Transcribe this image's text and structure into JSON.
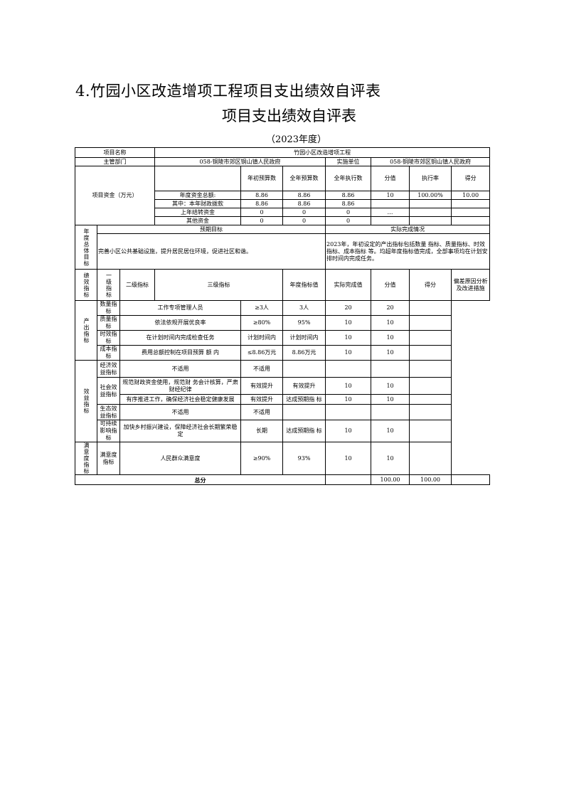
{
  "title": "4.竹园小区改造增项工程项目支出绩效自评表",
  "subtitle": "项目支出绩效自评表",
  "year": "（2023年度）",
  "project": {
    "name_label": "项目名称",
    "name": "竹园小区改造增项工程",
    "dept_label": "主管部门",
    "dept": "058-铜陵市郊区铜山镇人民政府",
    "impl_label": "实施单位",
    "impl": "058-铜陵市郊区铜山镇人民政府"
  },
  "funds": {
    "label": "项目资金（万元）",
    "headers": [
      "年初预算数",
      "全年预算数",
      "全年执行数",
      "分值",
      "执行率",
      "得分"
    ],
    "rows": [
      {
        "name": "年度资金总额:",
        "cells": [
          "8.86",
          "8.86",
          "8.86",
          "10",
          "100.00%",
          "10.00"
        ]
      },
      {
        "name": "其中：本年财政拨款",
        "cells": [
          "8.86",
          "8.86",
          "8.86",
          "",
          "",
          ""
        ]
      },
      {
        "name": "上年结转资金",
        "cells": [
          "0",
          "0",
          "0",
          "…",
          "",
          ""
        ]
      },
      {
        "name": "其他资金",
        "cells": [
          "0",
          "0",
          "0",
          "",
          "",
          ""
        ]
      }
    ]
  },
  "goals": {
    "label": "年度总体目标",
    "expected_label": "预期目标",
    "actual_label": "实际完成情况",
    "expected": "完善小区公共基础设施，提升居民居住环境，促进社区和谐。",
    "actual": "2023年，年初设定的产出指标包括数量 指标、质量指标、时效指标、成本指标 等。均超年度指标值完成，全部事项均在计划安排时间内完成任务。"
  },
  "indicators": {
    "label": "绩效指标",
    "headers": [
      "一级指标",
      "二级指标",
      "三级指标",
      "年度指标值",
      "实际完成值",
      "分值",
      "得分",
      "偏差原因分析及改进措施"
    ],
    "output_label": "产出指标",
    "output": [
      {
        "l2": "数量指标",
        "l3": "工作专项管理人员",
        "target": "≥3人",
        "actual": "3人",
        "score_value": "20",
        "score": "20"
      },
      {
        "l2": "质量指标",
        "l3": "依法依规开展优良率",
        "target": "≥80%",
        "actual": "95%",
        "score_value": "10",
        "score": "10"
      },
      {
        "l2": "时效指标",
        "l3": "在计划时间内完成检查任务",
        "target": "计划时间内",
        "actual": "计划时间内",
        "score_value": "10",
        "score": "10"
      },
      {
        "l2": "成本指标",
        "l3": "费用总额控制在项目预算 额 内",
        "target": "≤8.86万元",
        "actual": "8.86万元",
        "score_value": "10",
        "score": "10"
      }
    ],
    "benefit_label": "效益指标",
    "benefit": [
      {
        "l2": "经济效益指标",
        "l3": "不适用",
        "target": "不适用",
        "actual": "",
        "score_value": "",
        "score": ""
      },
      {
        "l2": "社会效益指标",
        "l3": "规范财政资金使用，规范财 务会计核算，严肃财经纪律",
        "target": "有效提升",
        "actual": "有效提升",
        "score_value": "10",
        "score": "10"
      },
      {
        "l2": "",
        "l3": "有序推进工作，确保经济社会稳定健康发展",
        "target": "有效提升",
        "actual": "达成预期指 标",
        "score_value": "10",
        "score": "10"
      },
      {
        "l2": "生态效益指标",
        "l3": "不适用",
        "target": "不适用",
        "actual": "",
        "score_value": "",
        "score": ""
      },
      {
        "l2": "可持续影响指标",
        "l3": "加快乡村振兴建设，保障经济社会长期繁荣稳定",
        "target": "长期",
        "actual": "达成预期指 标",
        "score_value": "10",
        "score": "10"
      }
    ],
    "satisfaction_label": "满意度指标",
    "satisfaction": {
      "l2": "满意度指标",
      "l3": "人民群众满意度",
      "target": "≥90%",
      "actual": "93%",
      "score_value": "10",
      "score": "10"
    }
  },
  "total": {
    "label": "总分",
    "score_value": "100.00",
    "score": "100.00"
  }
}
